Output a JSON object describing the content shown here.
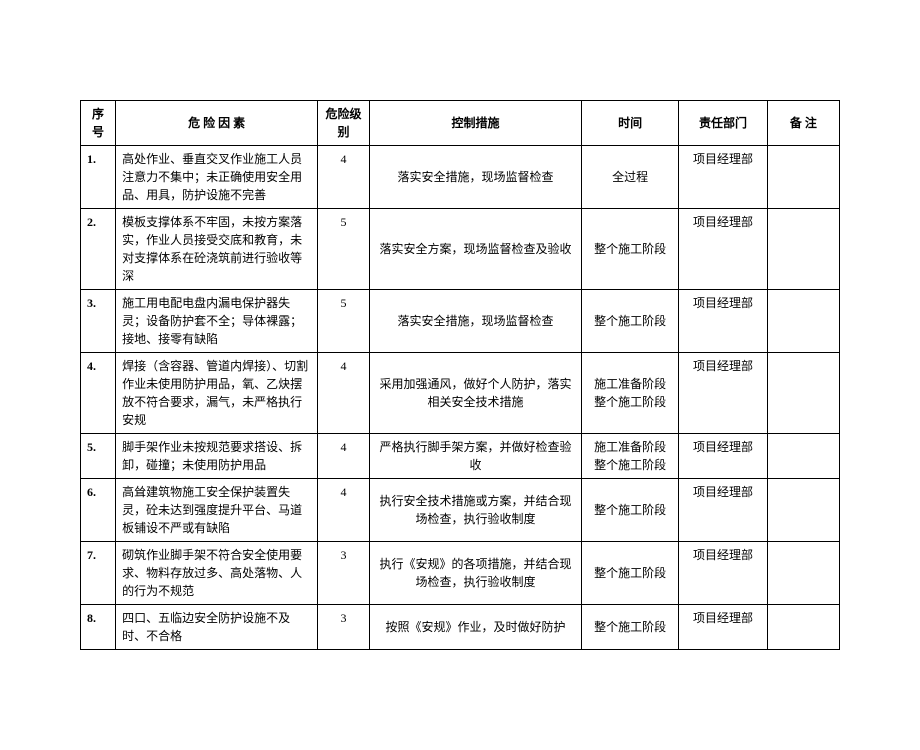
{
  "headers": {
    "seq": "序号",
    "factor": "危 险 因 素",
    "level": "危险级别",
    "measure": "控制措施",
    "time": "时间",
    "dept": "责任部门",
    "note": "备 注"
  },
  "rows": [
    {
      "seq": "1.",
      "factor": "高处作业、垂直交叉作业施工人员注意力不集中；未正确使用安全用品、用具，防护设施不完善",
      "level": "4",
      "measure": "落实安全措施，现场监督检查",
      "time": "全过程",
      "dept": "项目经理部",
      "note": ""
    },
    {
      "seq": "2.",
      "factor": "模板支撑体系不牢固，未按方案落实，作业人员接受交底和教育，未对支撑体系在砼浇筑前进行验收等深",
      "level": "5",
      "measure": "落实安全方案，现场监督检查及验收",
      "time": "整个施工阶段",
      "dept": "项目经理部",
      "note": ""
    },
    {
      "seq": "3.",
      "factor": "施工用电配电盘内漏电保护器失灵；设备防护套不全；导体裸露；接地、接零有缺陷",
      "level": "5",
      "measure": "落实安全措施，现场监督检查",
      "time": "整个施工阶段",
      "dept": "项目经理部",
      "note": ""
    },
    {
      "seq": "4.",
      "factor": "焊接（含容器、管道内焊接）、切割作业未使用防护用品，氧、乙炔摆放不符合要求，漏气，未严格执行安规",
      "level": "4",
      "measure": "采用加强通风，做好个人防护，落实相关安全技术措施",
      "time": "施工准备阶段整个施工阶段",
      "dept": "项目经理部",
      "note": ""
    },
    {
      "seq": "5.",
      "factor": "脚手架作业未按规范要求搭设、拆卸，碰撞；未使用防护用品",
      "level": "4",
      "measure": "严格执行脚手架方案，并做好检查验收",
      "time": "施工准备阶段整个施工阶段",
      "dept": "项目经理部",
      "note": ""
    },
    {
      "seq": "6.",
      "factor": "高耸建筑物施工安全保护装置失灵，砼未达到强度提升平台、马道板铺设不严或有缺陷",
      "level": "4",
      "measure": "执行安全技术措施或方案，并结合现场检查，执行验收制度",
      "time": "整个施工阶段",
      "dept": "项目经理部",
      "note": ""
    },
    {
      "seq": "7.",
      "factor": "砌筑作业脚手架不符合安全使用要求、物料存放过多、高处落物、人的行为不规范",
      "level": "3",
      "measure": "执行《安规》的各项措施，并结合现场检查，执行验收制度",
      "time": "整个施工阶段",
      "dept": "项目经理部",
      "note": ""
    },
    {
      "seq": "8.",
      "factor": "四口、五临边安全防护设施不及时、不合格",
      "level": "3",
      "measure": "按照《安规》作业，及时做好防护",
      "time": "整个施工阶段",
      "dept": "项目经理部",
      "note": ""
    }
  ]
}
